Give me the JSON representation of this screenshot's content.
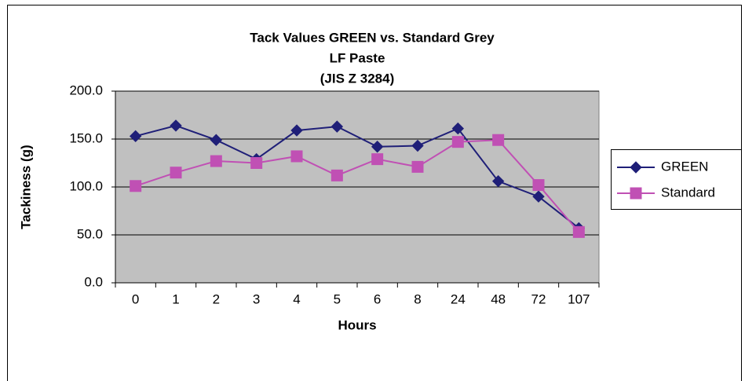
{
  "chart_data": {
    "type": "line",
    "title": "Tack Values GREEN vs. Standard Grey",
    "subtitle": [
      "LF Paste",
      "(JIS Z 3284)"
    ],
    "xlabel": "Hours",
    "ylabel": "Tackiness (g)",
    "categories": [
      "0",
      "1",
      "2",
      "3",
      "4",
      "5",
      "6",
      "8",
      "24",
      "48",
      "72",
      "107"
    ],
    "series": [
      {
        "name": "GREEN",
        "color": "#1f1f78",
        "marker": "diamond",
        "values": [
          153,
          164,
          149,
          129,
          159,
          163,
          142,
          143,
          161,
          106,
          90,
          57
        ]
      },
      {
        "name": "Standard",
        "color": "#c050b4",
        "marker": "square",
        "values": [
          101,
          115,
          127,
          125,
          132,
          112,
          129,
          121,
          147,
          149,
          102,
          53
        ]
      }
    ],
    "ylim": [
      0,
      200
    ],
    "yticks": [
      {
        "value": 0,
        "label": "0.0"
      },
      {
        "value": 50,
        "label": "50.0"
      },
      {
        "value": 100,
        "label": "100.0"
      },
      {
        "value": 150,
        "label": "150.0"
      },
      {
        "value": 200,
        "label": "200.0"
      }
    ],
    "grid": true,
    "legend": "right",
    "plot_background": "#c0c0c0"
  }
}
